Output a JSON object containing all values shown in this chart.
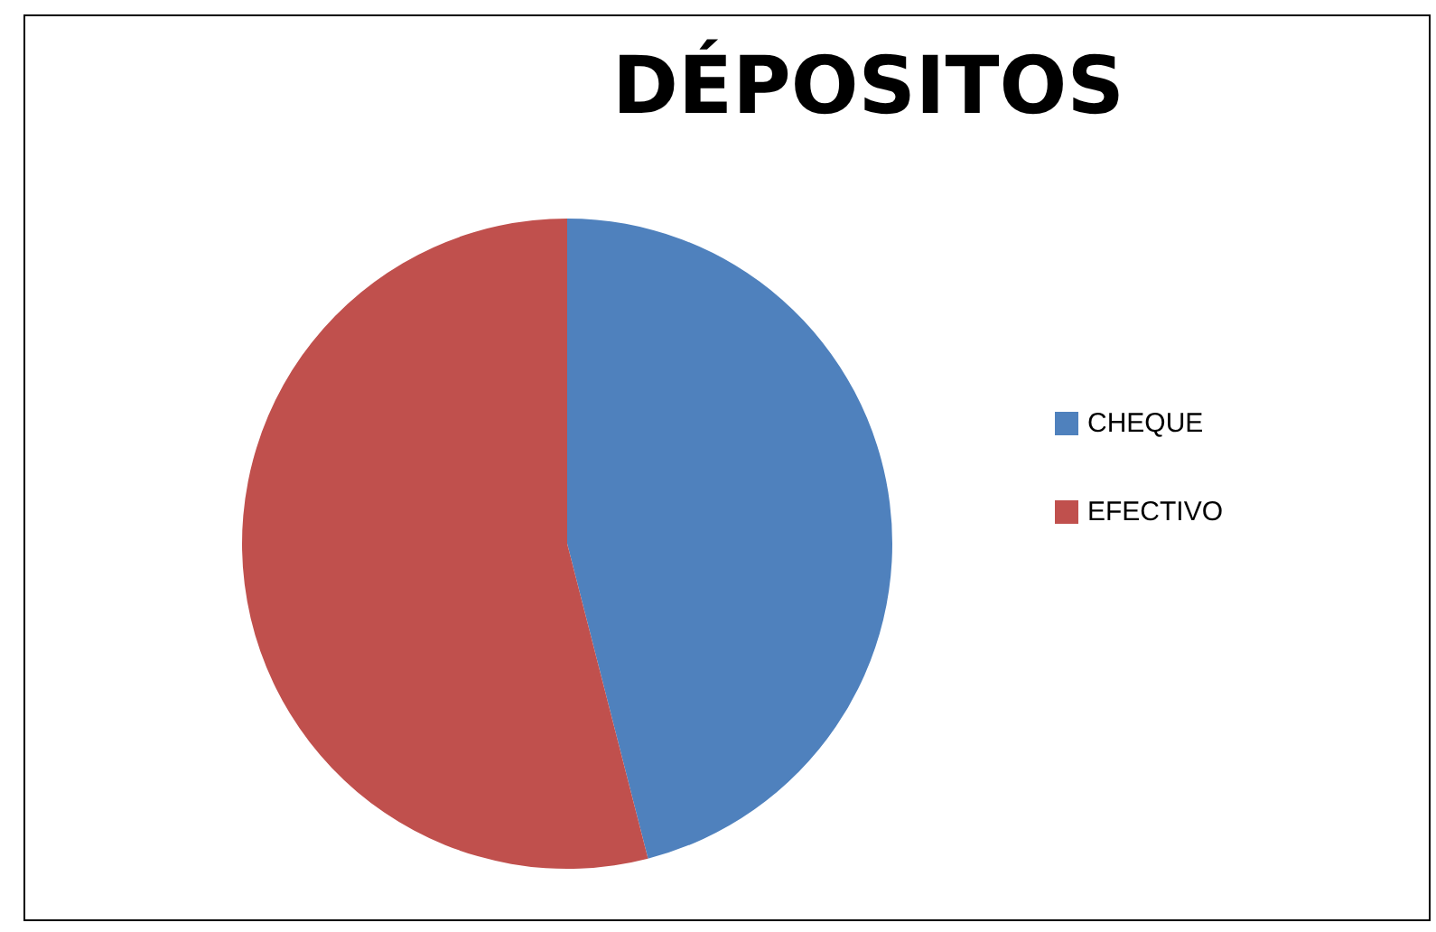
{
  "chart_data": {
    "type": "pie",
    "title": "DÉPOSITOS",
    "categories": [
      "CHEQUE",
      "EFECTIVO"
    ],
    "values": [
      46,
      54
    ],
    "colors": [
      "#4f81bd",
      "#c0504d"
    ],
    "legend": "right"
  }
}
